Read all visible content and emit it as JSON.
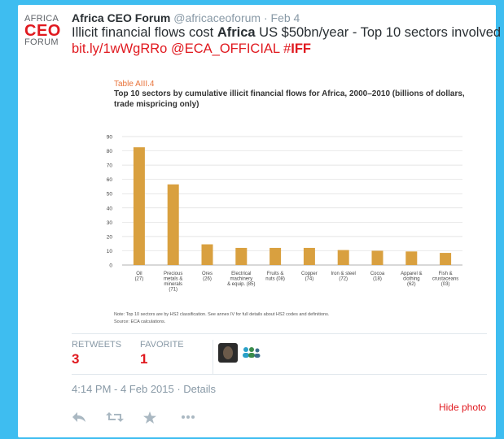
{
  "avatar": {
    "top": "AFRICA",
    "mid": "CEO",
    "bot": "FORUM"
  },
  "tweet": {
    "name": "Africa CEO Forum",
    "handle": "@africaceoforum",
    "separator": "·",
    "time": "Feb 4",
    "text_part1": "Illicit financial flows cost ",
    "text_bold": "Africa",
    "text_part2": " US $50bn/year - Top 10 sectors involved",
    "link": "bit.ly/1wWgRRo",
    "mention": "@ECA_OFFICIAL",
    "hashtag_hash": "#",
    "hashtag_tag": "IFF"
  },
  "photo": {
    "table_label": "Table AIII.4",
    "title": "Top 10 sectors by cumulative illicit financial flows for Africa, 2000–2010 (billions of dollars, trade mispricing only)",
    "note_line1": "Note: Top 10 sectors are by HS2 classification. See annex IV for full details about HS2 codes and definitions.",
    "note_line2": "Source: ECA calculations."
  },
  "chart_data": {
    "type": "bar",
    "title": "Top 10 sectors by cumulative illicit financial flows for Africa, 2000–2010 (billions of dollars, trade mispricing only)",
    "categories": [
      [
        "Oil",
        "(27)"
      ],
      [
        "Precious",
        "metals &",
        "minerals",
        "(71)"
      ],
      [
        "Ores",
        "(26)"
      ],
      [
        "Electrical",
        "machinery",
        "& equip. (85)"
      ],
      [
        "Fruits &",
        "nuts (08)"
      ],
      [
        "Copper",
        "(74)"
      ],
      [
        "Iron & steel",
        "(72)"
      ],
      [
        "Cocoa",
        "(18)"
      ],
      [
        "Apparel &",
        "clothing",
        "(62)"
      ],
      [
        "Fish &",
        "crustaceans",
        "(03)"
      ]
    ],
    "values": [
      82.5,
      56.5,
      14.5,
      12,
      12,
      12,
      10.5,
      10,
      9.5,
      8.5
    ],
    "ylim": [
      0,
      90
    ],
    "yticks": [
      0,
      10,
      20,
      30,
      40,
      50,
      60,
      70,
      80,
      90
    ],
    "grid": true,
    "bar_color": "#d9a03f"
  },
  "stats": {
    "retweets_label": "RETWEETS",
    "retweets_value": "3",
    "favorite_label": "FAVORITE",
    "favorite_value": "1"
  },
  "datetime": "4:14 PM - 4 Feb 2015 · Details",
  "actions": {
    "reply_icon": "reply-icon",
    "retweet_icon": "retweet-icon",
    "favorite_icon": "star-icon",
    "more_icon": "more-icon",
    "hide_photo": "Hide photo"
  },
  "colors": {
    "background": "#3ebdf0",
    "accent": "#e0191f"
  }
}
